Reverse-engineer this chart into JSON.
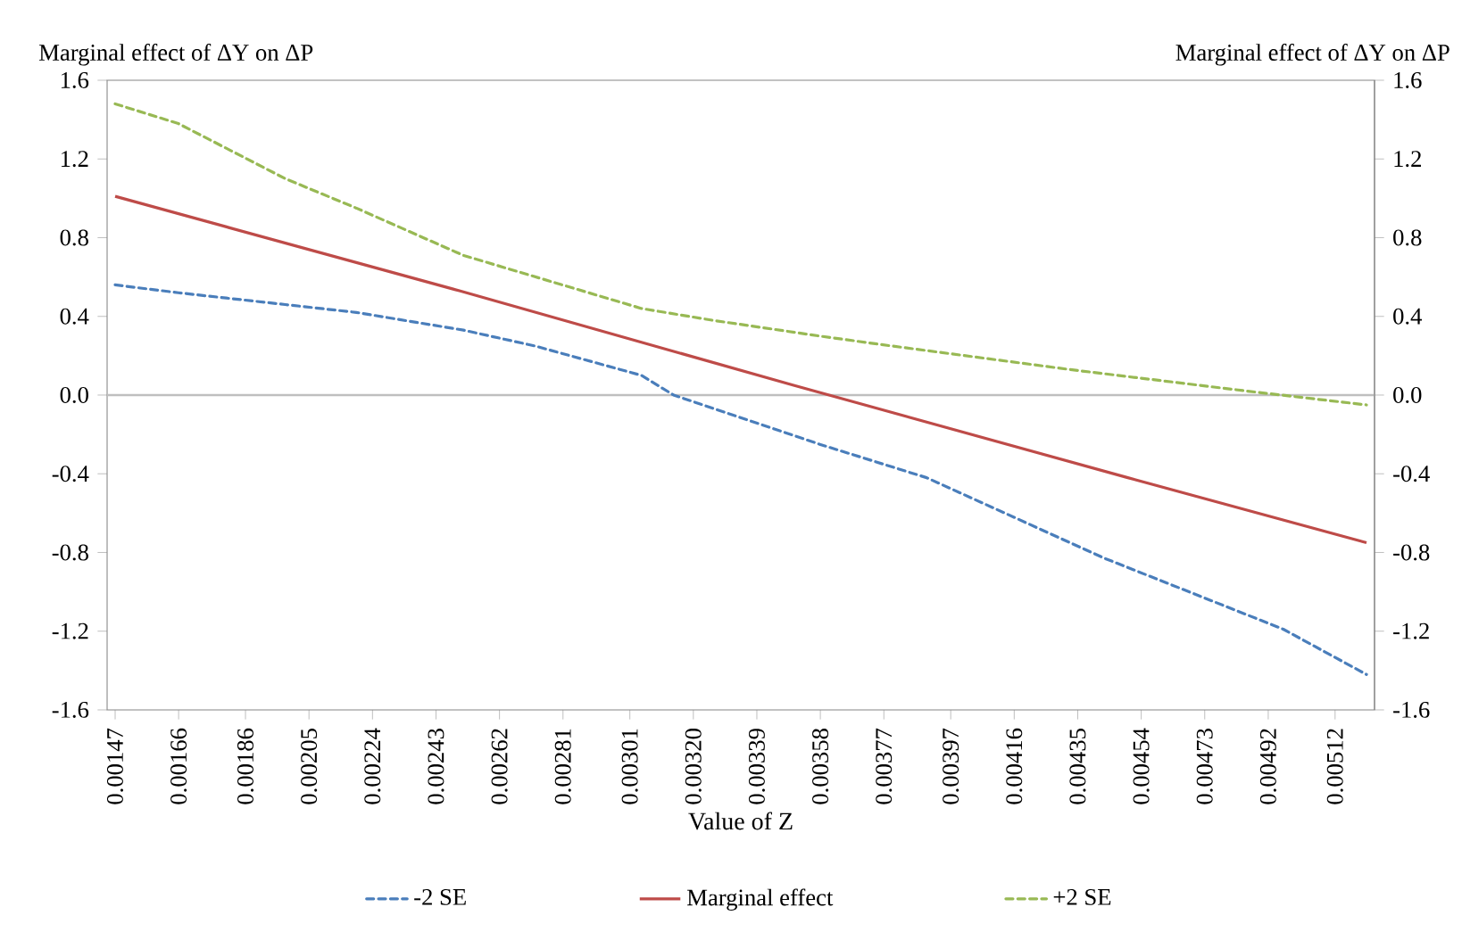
{
  "chart_data": {
    "type": "line",
    "xlabel": "Value of Z",
    "ylabel": "Marginal effect of ΔY on ΔP",
    "y2label": "Marginal effect of ΔY on ΔP",
    "xlim": [
      0.001446,
      0.005238
    ],
    "xticks": [
      0.00147,
      0.00166,
      0.00186,
      0.00205,
      0.00224,
      0.00243,
      0.00262,
      0.00281,
      0.00301,
      {
        "value": 0.0032,
        "label": "0.00320"
      },
      0.00339,
      0.00358,
      0.00377,
      0.00397,
      0.00416,
      0.00435,
      0.00454,
      0.00473,
      0.00492,
      0.00512
    ],
    "ylim": [
      -1.6,
      1.6
    ],
    "yticks": [
      -1.6,
      -1.2,
      -0.8,
      -0.4,
      {
        "value": 0,
        "label": "0.0"
      },
      0.4,
      0.8,
      1.2,
      1.6
    ],
    "y2lim": [
      -1.6,
      1.6
    ],
    "y2ticks": [
      -1.6,
      -1.2,
      -0.8,
      -0.4,
      {
        "value": 0,
        "label": "0.0"
      },
      0.4,
      0.8,
      1.2,
      1.6
    ],
    "ref_lines": [
      {
        "axis": "y",
        "value": 0,
        "color": "#bfbfbf"
      }
    ],
    "legend": "bottom",
    "series": [
      {
        "name": "-2 SE",
        "color": "#4a7ebb",
        "line_style": "dashed",
        "x": [
          0.00147,
          0.001659,
          0.001979,
          0.002192,
          0.002512,
          0.002725,
          0.003045,
          0.003141,
          0.003578,
          0.003898,
          0.004431,
          0.004965,
          0.005214
        ],
        "values": [
          0.56,
          0.52,
          0.46,
          0.42,
          0.33,
          0.25,
          0.1,
          0.0,
          -0.25,
          -0.42,
          -0.83,
          -1.19,
          -1.42
        ]
      },
      {
        "name": "Marginal effect",
        "color": "#be4b48",
        "line_style": "solid",
        "x": [
          0.00147,
          0.0025,
          0.0035,
          0.0045,
          0.005214
        ],
        "values": [
          1.01,
          0.53,
          0.05,
          -0.42,
          -0.75
        ]
      },
      {
        "name": "+2 SE",
        "color": "#98b954",
        "line_style": "dashed",
        "x": [
          0.00147,
          0.001659,
          0.001979,
          0.002192,
          0.002512,
          0.003045,
          0.003258,
          0.003578,
          0.003791,
          0.004325,
          0.004858,
          0.005214
        ],
        "values": [
          1.48,
          1.38,
          1.1,
          0.95,
          0.71,
          0.44,
          0.38,
          0.3,
          0.25,
          0.13,
          0.02,
          -0.05
        ]
      }
    ]
  }
}
